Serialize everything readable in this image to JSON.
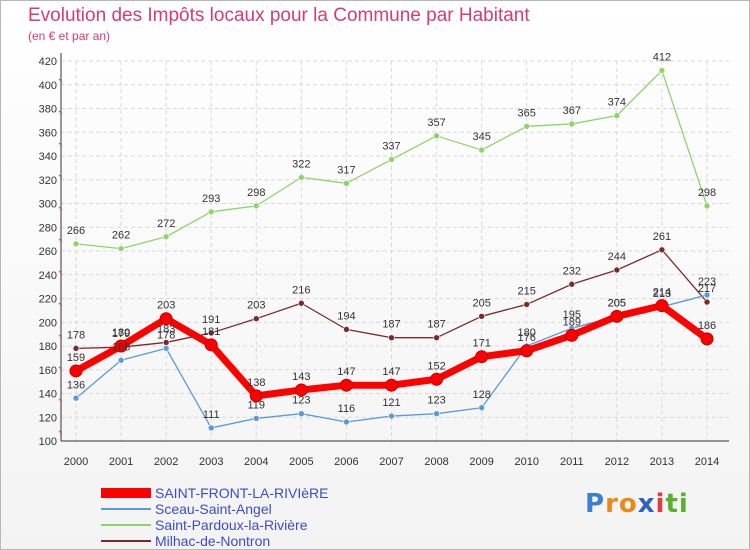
{
  "title": "Evolution des Impôts locaux pour la Commune par Habitant",
  "subtitle": "(en € et par an)",
  "brand": {
    "letters": [
      "P",
      "r",
      "o",
      "x",
      "i",
      "t",
      "i"
    ],
    "colors": [
      "#3b7fd4",
      "#e8891a",
      "#e8891a",
      "#2f62c0",
      "#e23d3d",
      "#5ab02c",
      "#5ab02c"
    ]
  },
  "chart_data": {
    "type": "line",
    "title": "Evolution des Impôts locaux pour la Commune par Habitant",
    "subtitle": "(en € et par an)",
    "xlabel": "",
    "ylabel": "",
    "x": [
      "2000",
      "2001",
      "2002",
      "2003",
      "2004",
      "2005",
      "2006",
      "2007",
      "2008",
      "2009",
      "2010",
      "2011",
      "2012",
      "2013",
      "2014"
    ],
    "ylim": [
      100,
      420
    ],
    "yticks": [
      100,
      120,
      140,
      160,
      180,
      200,
      220,
      240,
      260,
      280,
      300,
      320,
      340,
      360,
      380,
      400,
      420
    ],
    "grid": true,
    "legend_position": "bottom-left",
    "series": [
      {
        "name": "SAINT-FRONT-LA-RIVIèRE",
        "color": "#ff0000",
        "style": "thick",
        "values": [
          159,
          180,
          203,
          181,
          138,
          143,
          147,
          147,
          152,
          171,
          176,
          189,
          205,
          214,
          186
        ]
      },
      {
        "name": "Sceau-Saint-Angel",
        "color": "#5b9bd5",
        "style": "thin",
        "values": [
          136,
          168,
          178,
          111,
          119,
          123,
          116,
          121,
          123,
          128,
          180,
          195,
          205,
          213,
          223
        ]
      },
      {
        "name": "Saint-Pardoux-la-Rivière",
        "color": "#8fd46a",
        "style": "thin",
        "values": [
          266,
          262,
          272,
          293,
          298,
          322,
          317,
          337,
          357,
          345,
          365,
          367,
          374,
          412,
          298
        ]
      },
      {
        "name": "Milhac-de-Nontron",
        "color": "#7b2a2a",
        "style": "thin",
        "values": [
          178,
          179,
          183,
          191,
          203,
          216,
          194,
          187,
          187,
          205,
          215,
          232,
          244,
          261,
          217
        ]
      }
    ]
  }
}
